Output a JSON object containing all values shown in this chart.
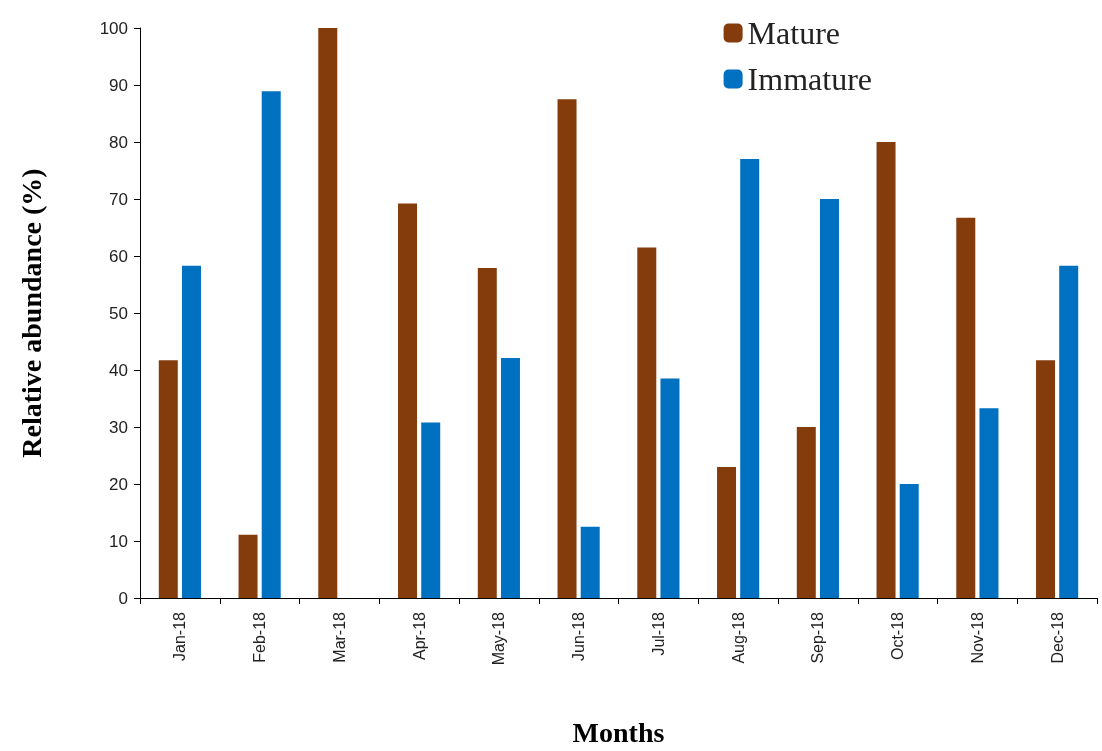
{
  "chart_data": {
    "type": "bar",
    "xlabel": "Months",
    "ylabel": "Relative abundance (%)",
    "categories": [
      "Jan-18",
      "Feb-18",
      "Mar-18",
      "Apr-18",
      "May-18",
      "Jun-18",
      "Jul-18",
      "Aug-18",
      "Sep-18",
      "Oct-18",
      "Nov-18",
      "Dec-18"
    ],
    "series": [
      {
        "name": "Mature",
        "color": "#843c0c",
        "values": [
          41.7,
          11.1,
          100,
          69.2,
          57.9,
          87.5,
          61.5,
          23.0,
          30.0,
          80.0,
          66.7,
          41.7
        ]
      },
      {
        "name": "Immature",
        "color": "#0070c0",
        "values": [
          58.3,
          88.9,
          0,
          30.8,
          42.1,
          12.5,
          38.5,
          77.0,
          70.0,
          20.0,
          33.3,
          58.3
        ]
      }
    ],
    "ylim": [
      0,
      100
    ],
    "yticks": [
      0,
      10,
      20,
      30,
      40,
      50,
      60,
      70,
      80,
      90,
      100
    ],
    "grid": false,
    "legend": "top right"
  }
}
